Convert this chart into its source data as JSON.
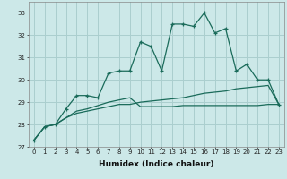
{
  "title": "",
  "xlabel": "Humidex (Indice chaleur)",
  "bg_color": "#cce8e8",
  "grid_color": "#aacece",
  "line_color": "#1a6b5a",
  "x_values": [
    0,
    1,
    2,
    3,
    4,
    5,
    6,
    7,
    8,
    9,
    10,
    11,
    12,
    13,
    14,
    15,
    16,
    17,
    18,
    19,
    20,
    21,
    22,
    23
  ],
  "line1": [
    27.3,
    27.9,
    28.0,
    28.7,
    29.3,
    29.3,
    29.2,
    30.3,
    30.4,
    30.4,
    31.7,
    31.5,
    30.4,
    32.5,
    32.5,
    32.4,
    33.0,
    32.1,
    32.3,
    30.4,
    30.7,
    30.0,
    30.0,
    28.9
  ],
  "line2": [
    27.3,
    27.9,
    28.0,
    28.3,
    28.5,
    28.6,
    28.7,
    28.8,
    28.9,
    28.9,
    29.0,
    29.05,
    29.1,
    29.15,
    29.2,
    29.3,
    29.4,
    29.45,
    29.5,
    29.6,
    29.65,
    29.7,
    29.75,
    28.9
  ],
  "line3": [
    27.3,
    27.9,
    28.0,
    28.3,
    28.6,
    28.7,
    28.85,
    29.0,
    29.1,
    29.2,
    28.8,
    28.8,
    28.8,
    28.8,
    28.85,
    28.85,
    28.85,
    28.85,
    28.85,
    28.85,
    28.85,
    28.85,
    28.9,
    28.9
  ],
  "ylim": [
    27,
    33.5
  ],
  "xlim": [
    -0.5,
    23.5
  ],
  "yticks": [
    27,
    28,
    29,
    30,
    31,
    32,
    33
  ],
  "xlabel_fontsize": 6.5,
  "tick_fontsize": 5.0
}
